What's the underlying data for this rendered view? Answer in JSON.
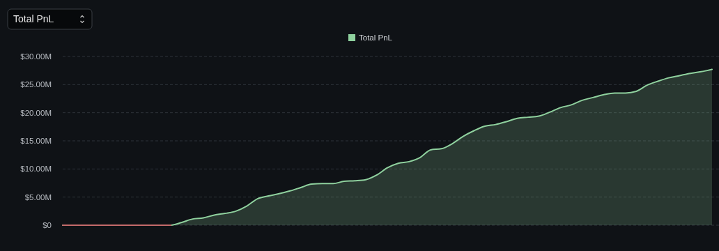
{
  "chart_data": {
    "type": "area",
    "title": "Total PnL",
    "categories": [
      null,
      null,
      null,
      null,
      null,
      null,
      null,
      null,
      null,
      null,
      null,
      null,
      null,
      null,
      null,
      null,
      null,
      null,
      null,
      null,
      null,
      null,
      null,
      null,
      null,
      null,
      null,
      null,
      null,
      null,
      null,
      null,
      null,
      null,
      null,
      null,
      null,
      null,
      null,
      null,
      null,
      null,
      null,
      null,
      null,
      null,
      null,
      null,
      null,
      null,
      null,
      null,
      null,
      null,
      null,
      null,
      null,
      null,
      null,
      null,
      null
    ],
    "series": [
      {
        "name": "Total PnL",
        "color": "#8fd19e",
        "values": [
          0,
          0,
          0,
          0,
          0,
          0,
          0,
          0,
          0,
          0,
          0,
          0.5,
          1.1,
          1.3,
          1.8,
          2.1,
          2.5,
          3.4,
          4.7,
          5.2,
          5.6,
          6.1,
          6.7,
          7.3,
          7.4,
          7.4,
          7.8,
          7.9,
          8.1,
          8.9,
          10.2,
          11.0,
          11.3,
          12.0,
          13.4,
          13.6,
          14.5,
          15.8,
          16.8,
          17.6,
          17.9,
          18.4,
          19.0,
          19.2,
          19.4,
          20.1,
          20.9,
          21.4,
          22.2,
          22.7,
          23.2,
          23.5,
          23.5,
          23.8,
          24.9,
          25.6,
          26.2,
          26.6,
          27.0,
          27.3,
          27.7
        ]
      },
      {
        "type": "line",
        "color": "#c46a6a",
        "values": [
          0,
          0,
          0,
          0,
          0,
          0,
          0,
          0,
          0,
          0,
          0,
          null,
          null,
          null,
          null,
          null,
          null,
          null,
          null,
          null,
          null,
          null,
          null,
          null,
          null,
          null,
          null,
          null,
          null,
          null,
          null,
          null,
          null,
          null,
          null,
          null,
          null,
          null,
          null,
          null,
          null,
          null,
          null,
          null,
          null,
          null,
          null,
          null,
          null,
          null,
          null,
          null,
          null,
          null,
          null,
          null,
          null,
          null,
          null,
          null,
          null
        ]
      }
    ],
    "ylim": [
      0,
      30
    ],
    "yticks": [
      {
        "value": 0,
        "label": "$0"
      },
      {
        "value": 5,
        "label": "$5.00M"
      },
      {
        "value": 10,
        "label": "$10.00M"
      },
      {
        "value": 15,
        "label": "$15.00M"
      },
      {
        "value": 20,
        "label": "$20.00M"
      },
      {
        "value": 25,
        "label": "$25.00M"
      },
      {
        "value": 30,
        "label": "$30.00M"
      }
    ],
    "grid": "y",
    "legend": "top",
    "marker": "none",
    "line_style": "solid"
  }
}
